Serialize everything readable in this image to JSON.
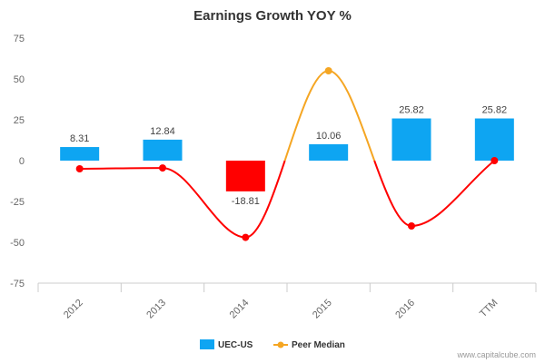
{
  "chart_data": {
    "type": "bar",
    "title": "Earnings Growth YOY %",
    "xlabel": "",
    "ylabel": "",
    "categories": [
      "2012",
      "2013",
      "2014",
      "2015",
      "2016",
      "TTM"
    ],
    "ylim": [
      -75,
      75
    ],
    "yticks": [
      75,
      50,
      25,
      0,
      -25,
      -50,
      -75
    ],
    "series": [
      {
        "name": "UEC-US",
        "kind": "bar",
        "values": [
          8.31,
          12.84,
          -18.81,
          10.06,
          25.82,
          25.82
        ],
        "labels": [
          "8.31",
          "12.84",
          "-18.81",
          "10.06",
          "25.82",
          "25.82"
        ],
        "color": "#0ea5f2",
        "negative_color": "#ff0000"
      },
      {
        "name": "Peer Median",
        "kind": "line",
        "values": [
          -5,
          -4.5,
          -47,
          55,
          -40,
          0
        ],
        "color": "#f5a623",
        "negative_color": "#ff0000"
      }
    ],
    "grid": false,
    "legend": "bottom-center"
  },
  "watermark": "www.capitalcube.com"
}
